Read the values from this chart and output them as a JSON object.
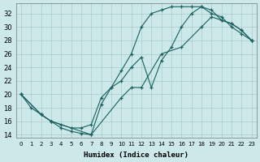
{
  "xlabel": "Humidex (Indice chaleur)",
  "bg_color": "#cce8e8",
  "grid_color": "#aacccc",
  "line_color": "#1a6060",
  "xlim": [
    -0.5,
    23.5
  ],
  "ylim": [
    13.5,
    33.5
  ],
  "yticks": [
    14,
    16,
    18,
    20,
    22,
    24,
    26,
    28,
    30,
    32
  ],
  "xticks": [
    0,
    1,
    2,
    3,
    4,
    5,
    6,
    7,
    8,
    9,
    10,
    11,
    12,
    13,
    14,
    15,
    16,
    17,
    18,
    19,
    20,
    21,
    22,
    23
  ],
  "curve1_x": [
    0,
    1,
    2,
    3,
    4,
    5,
    6,
    7,
    8,
    9,
    10,
    11,
    12,
    13,
    14,
    15,
    16,
    17,
    18,
    19,
    20,
    21,
    22,
    23
  ],
  "curve1_y": [
    20,
    18,
    17,
    16,
    15,
    14.5,
    14.2,
    14,
    18.5,
    21,
    23.5,
    26,
    30,
    32,
    32.5,
    33,
    33,
    33,
    33,
    32,
    31.5,
    30,
    29,
    28
  ],
  "curve2_x": [
    0,
    2,
    3,
    4,
    5,
    6,
    7,
    8,
    9,
    10,
    11,
    12,
    13,
    14,
    15,
    16,
    17,
    18,
    19,
    20,
    21,
    22,
    23
  ],
  "curve2_y": [
    20,
    17,
    16,
    15.5,
    15,
    15,
    15.5,
    19.5,
    21,
    22,
    24,
    25.5,
    21,
    25,
    27,
    30,
    32,
    33,
    32.5,
    31,
    30.5,
    29.5,
    28
  ],
  "curve3_x": [
    0,
    2,
    3,
    7,
    10,
    11,
    12,
    14,
    16,
    18,
    19,
    20,
    21,
    22,
    23
  ],
  "curve3_y": [
    20,
    17,
    16,
    14,
    19.5,
    21,
    21,
    26,
    27,
    30,
    31.5,
    31,
    30.5,
    29.5,
    28
  ]
}
